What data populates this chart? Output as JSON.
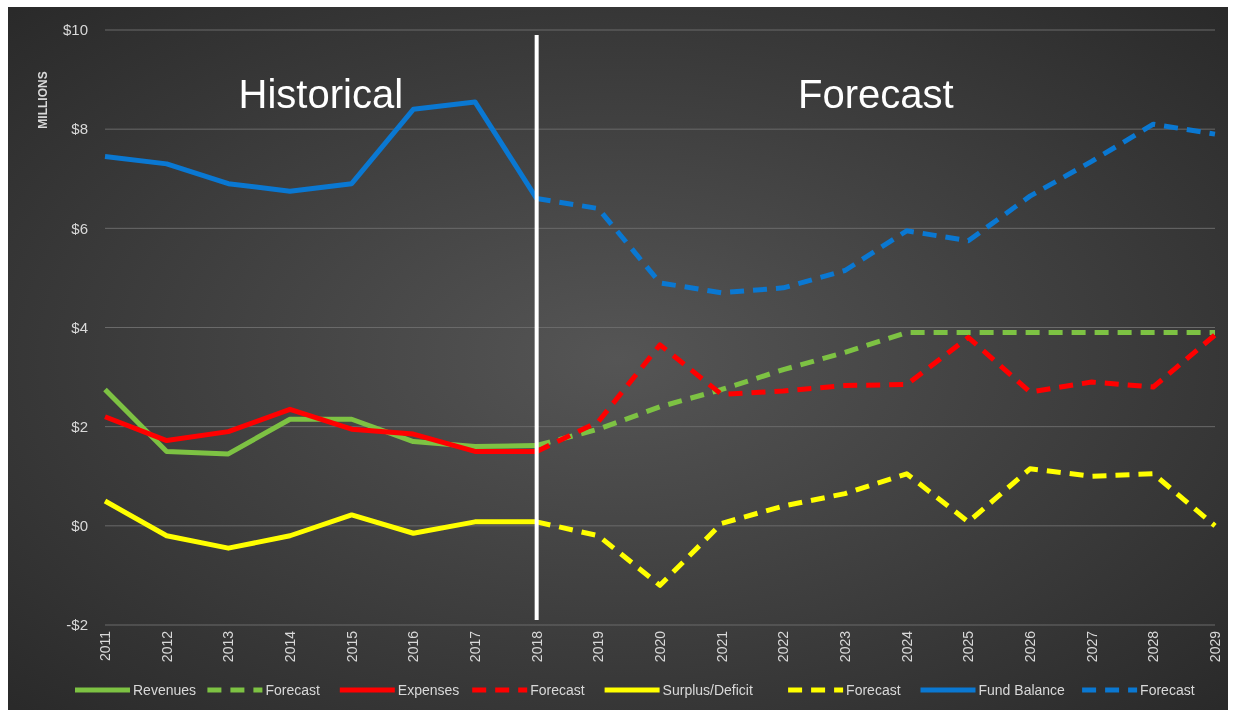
{
  "chart_data": {
    "type": "line",
    "ylabel": "MILLIONS",
    "categories": [
      "2011",
      "2012",
      "2013",
      "2014",
      "2015",
      "2016",
      "2017",
      "2018",
      "2019",
      "2020",
      "2021",
      "2022",
      "2023",
      "2024",
      "2025",
      "2026",
      "2027",
      "2028",
      "2029"
    ],
    "ylim": [
      -2,
      10
    ],
    "yticks": [
      {
        "value": -2,
        "label": "-$2"
      },
      {
        "value": 0,
        "label": "$0"
      },
      {
        "value": 2,
        "label": "$2"
      },
      {
        "value": 4,
        "label": "$4"
      },
      {
        "value": 6,
        "label": "$6"
      },
      {
        "value": 8,
        "label": "$8"
      },
      {
        "value": 10,
        "label": "$10"
      }
    ],
    "grid": "y",
    "legend": "bottom",
    "series": [
      {
        "name": "Revenues",
        "color": "#7dc243",
        "line_style": "solid",
        "values": [
          2.75,
          1.5,
          1.45,
          2.15,
          2.15,
          1.7,
          1.6,
          1.62,
          null,
          null,
          null,
          null,
          null,
          null,
          null,
          null,
          null,
          null,
          null
        ]
      },
      {
        "name": "Forecast",
        "color": "#7dc243",
        "line_style": "dashed",
        "values": [
          null,
          null,
          null,
          null,
          null,
          null,
          null,
          1.62,
          1.95,
          2.4,
          2.75,
          3.15,
          3.5,
          3.9,
          3.9,
          3.9,
          3.9,
          3.9,
          3.9
        ]
      },
      {
        "name": "Expenses",
        "color": "#ff0000",
        "line_style": "solid",
        "values": [
          2.2,
          1.72,
          1.9,
          2.35,
          1.95,
          1.85,
          1.5,
          1.5,
          null,
          null,
          null,
          null,
          null,
          null,
          null,
          null,
          null,
          null,
          null
        ]
      },
      {
        "name": "Forecast",
        "color": "#ff0000",
        "line_style": "dashed",
        "values": [
          null,
          null,
          null,
          null,
          null,
          null,
          null,
          1.5,
          2.1,
          3.65,
          2.65,
          2.72,
          2.83,
          2.85,
          3.8,
          2.7,
          2.9,
          2.8,
          3.85
        ]
      },
      {
        "name": "Surplus/Deficit",
        "color": "#ffff00",
        "line_style": "solid",
        "values": [
          0.5,
          -0.2,
          -0.45,
          -0.2,
          0.22,
          -0.15,
          0.08,
          0.08,
          null,
          null,
          null,
          null,
          null,
          null,
          null,
          null,
          null,
          null,
          null
        ]
      },
      {
        "name": "Forecast",
        "color": "#ffff00",
        "line_style": "dashed",
        "values": [
          null,
          null,
          null,
          null,
          null,
          null,
          null,
          0.08,
          -0.2,
          -1.2,
          0.05,
          0.4,
          0.65,
          1.05,
          0.08,
          1.15,
          1.0,
          1.05,
          0.0
        ]
      },
      {
        "name": "Fund Balance",
        "color": "#0a78d2",
        "line_style": "solid",
        "values": [
          7.45,
          7.3,
          6.9,
          6.75,
          6.9,
          8.4,
          8.55,
          6.6,
          null,
          null,
          null,
          null,
          null,
          null,
          null,
          null,
          null,
          null,
          null
        ]
      },
      {
        "name": "Forecast",
        "color": "#0a78d2",
        "line_style": "dashed",
        "values": [
          null,
          null,
          null,
          null,
          null,
          null,
          null,
          6.6,
          6.4,
          4.9,
          4.7,
          4.8,
          5.15,
          5.95,
          5.75,
          6.65,
          7.35,
          8.1,
          7.9
        ]
      }
    ],
    "ref_lines": [
      {
        "axis": "x",
        "value": "2018",
        "color": "#ffffff"
      }
    ],
    "annotations": [
      "Historical",
      "Forecast"
    ]
  }
}
